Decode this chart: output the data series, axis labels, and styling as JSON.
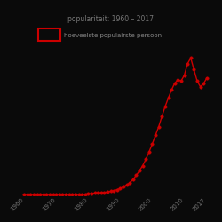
{
  "title": "populariteit: 1960 – 2017",
  "legend_label": "hoeveelste populairste persoon",
  "background_color": "#0a0a0a",
  "line_color": "#cc0000",
  "marker_color": "#cc0000",
  "title_color": "#777777",
  "legend_text_color": "#888888",
  "years": [
    1960,
    1961,
    1962,
    1963,
    1964,
    1965,
    1966,
    1967,
    1968,
    1969,
    1970,
    1971,
    1972,
    1973,
    1974,
    1975,
    1976,
    1977,
    1978,
    1979,
    1980,
    1981,
    1982,
    1983,
    1984,
    1985,
    1986,
    1987,
    1988,
    1989,
    1990,
    1991,
    1992,
    1993,
    1994,
    1995,
    1996,
    1997,
    1998,
    1999,
    2000,
    2001,
    2002,
    2003,
    2004,
    2005,
    2006,
    2007,
    2008,
    2009,
    2010,
    2011,
    2012,
    2013,
    2014,
    2015,
    2016,
    2017
  ],
  "values": [
    2,
    2,
    2,
    2,
    2,
    2,
    2,
    2,
    2,
    2,
    2,
    2,
    2,
    2,
    2,
    2,
    2,
    2,
    2,
    2,
    3,
    3,
    4,
    4,
    5,
    5,
    6,
    7,
    8,
    10,
    12,
    15,
    18,
    22,
    28,
    35,
    43,
    52,
    63,
    76,
    90,
    105,
    120,
    138,
    155,
    170,
    184,
    196,
    202,
    200,
    210,
    230,
    240,
    220,
    200,
    190,
    195,
    205
  ],
  "xlim": [
    1958,
    2019
  ],
  "ylim": [
    0,
    260
  ],
  "xticks": [
    1960,
    1970,
    1980,
    1990,
    2000,
    2010,
    2017
  ],
  "figsize": [
    2.5,
    2.5
  ],
  "dpi": 100,
  "marker_size": 2.5,
  "line_width": 1.0,
  "title_fontsize": 5.5,
  "legend_fontsize": 5,
  "tick_fontsize": 5
}
